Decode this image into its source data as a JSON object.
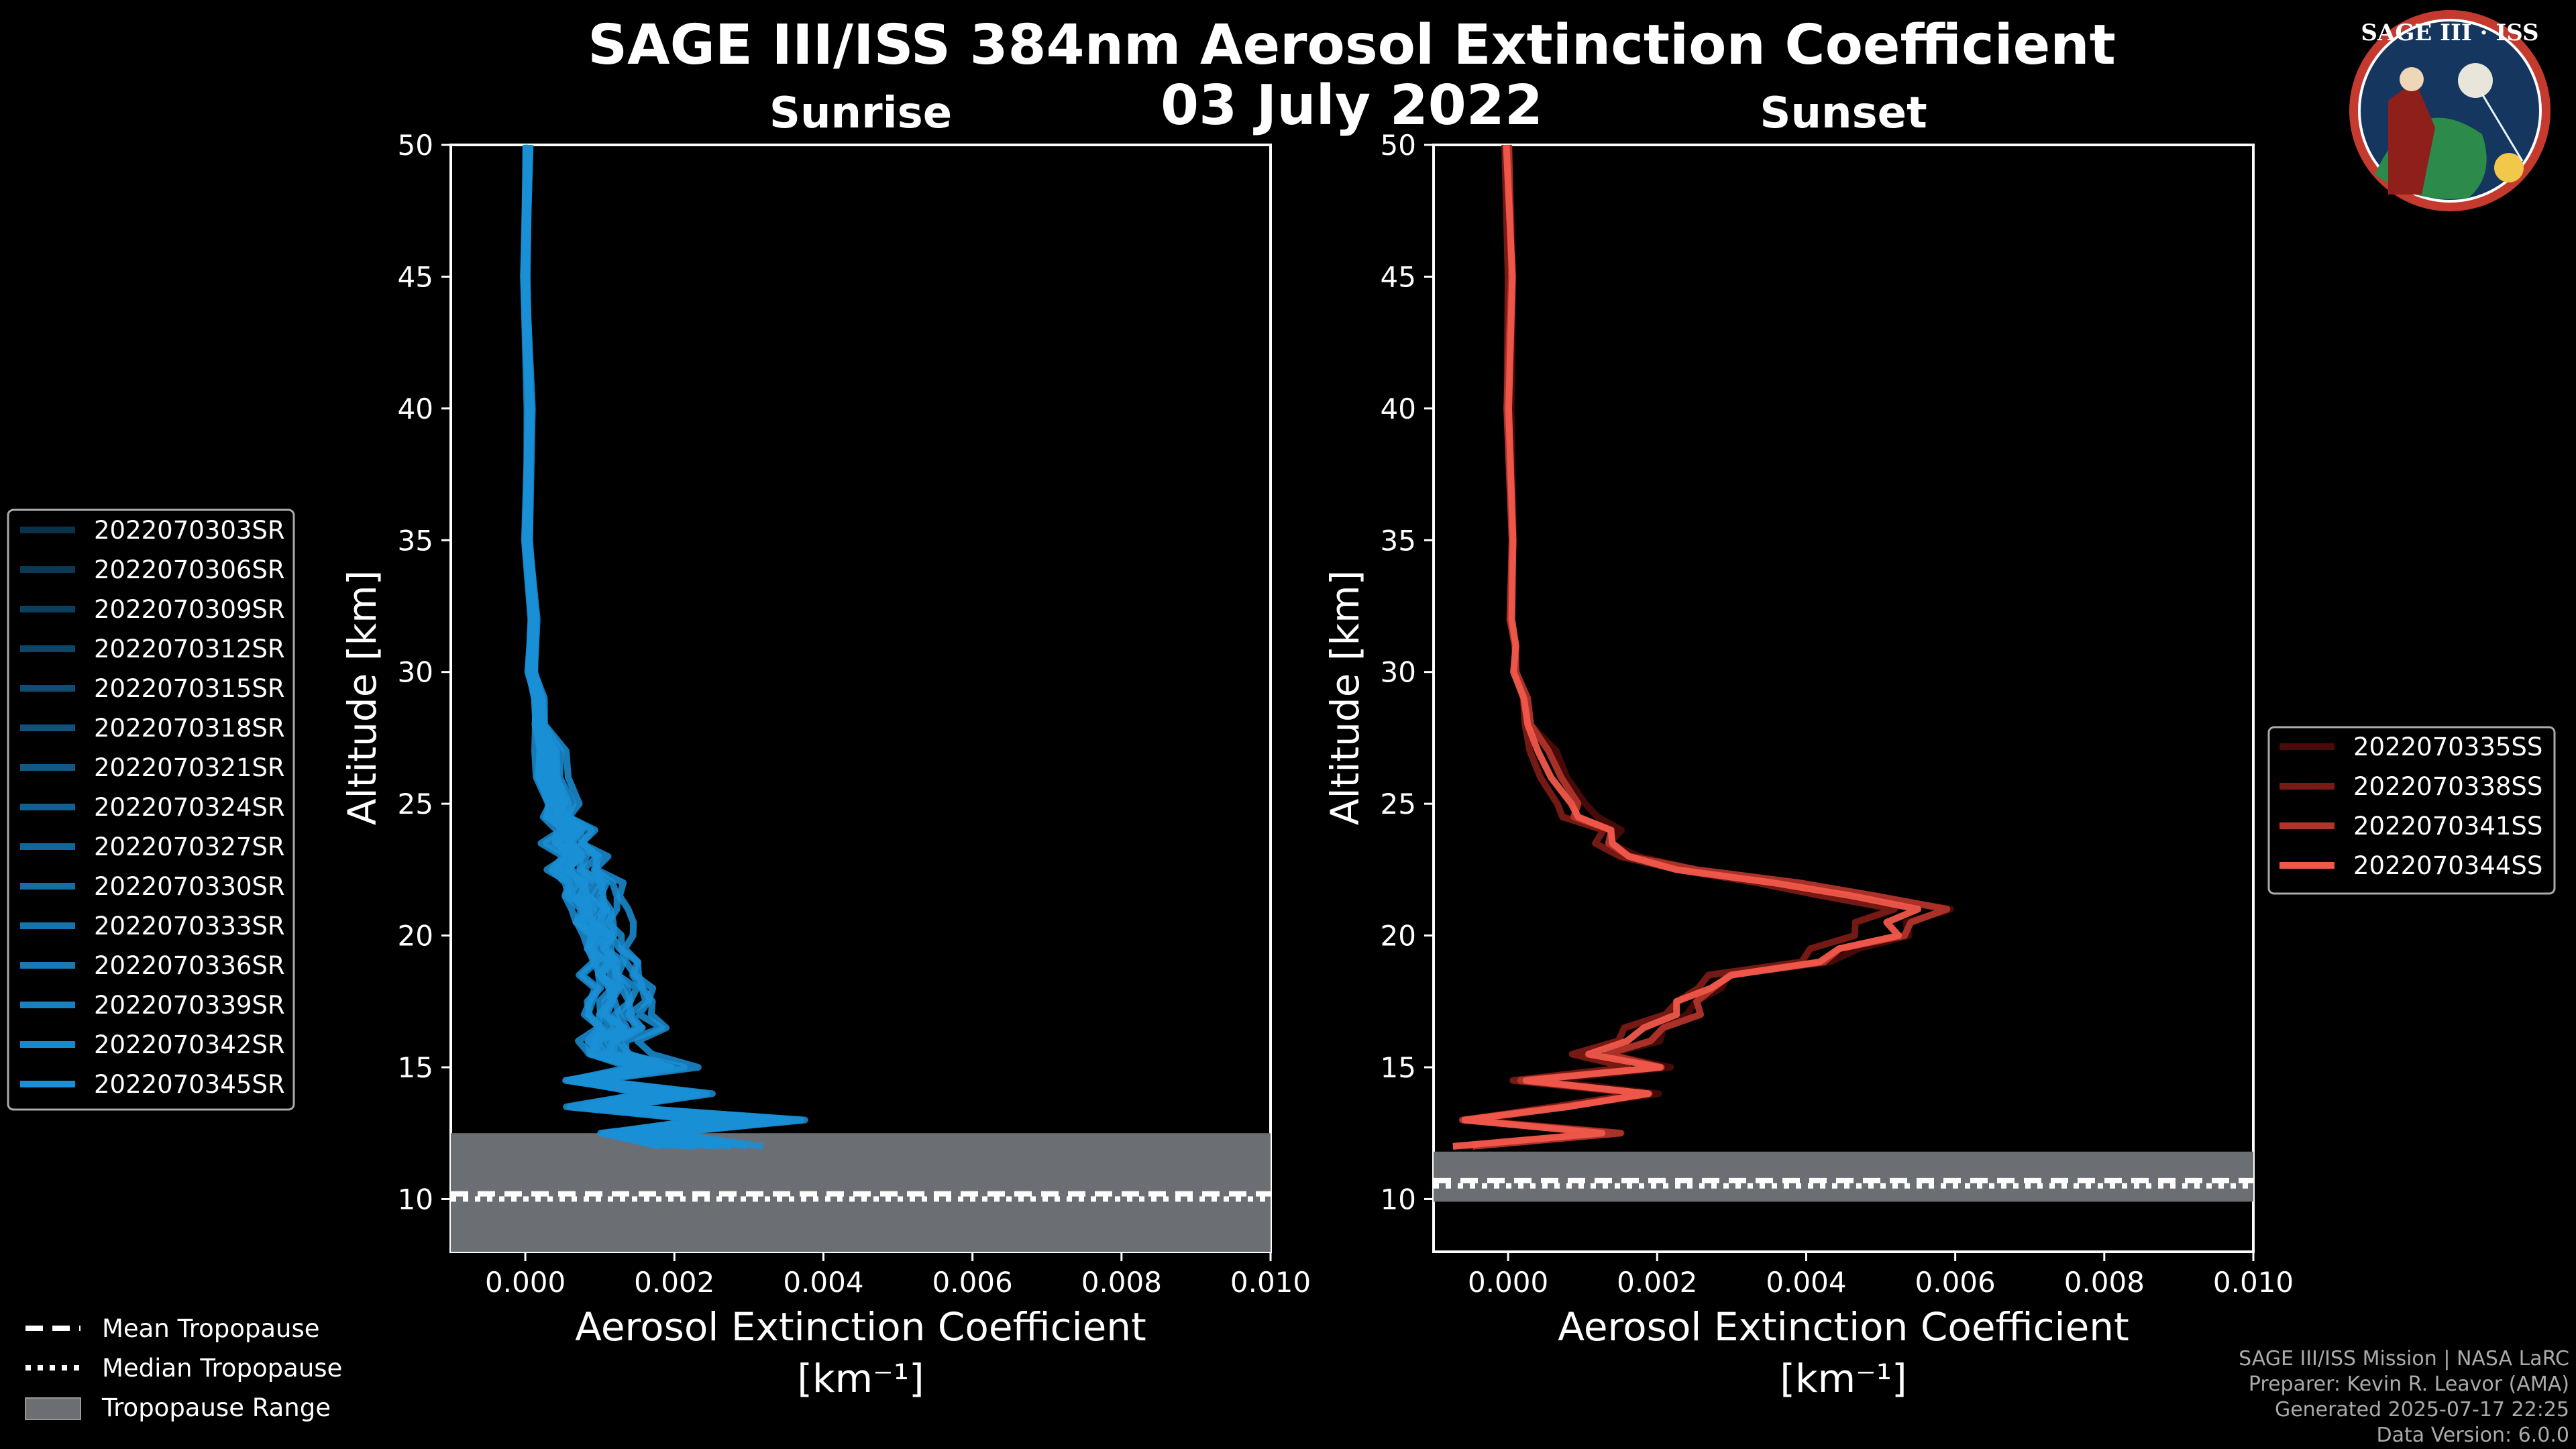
{
  "chart_data": {
    "title": "SAGE III/ISS 384nm Aerosol Extinction Coefficient",
    "subtitle": "03 July 2022",
    "logo_text": "SAGE III · ISS",
    "credits": [
      "SAGE III/ISS Mission | NASA LaRC",
      "Preparer: Kevin R. Leavor (AMA)",
      "Generated 2025-07-17 22:25",
      "Data Version: 6.0.0"
    ],
    "tropopause_legend": [
      "Mean Tropopause",
      "Median Tropopause",
      "Tropopause Range"
    ],
    "panels": [
      {
        "type": "line",
        "title": "Sunrise",
        "xlabel": "Aerosol Extinction Coefficient",
        "xunit": "[km⁻¹]",
        "ylabel": "Altitude [km]",
        "xlim": [
          -0.001,
          0.01
        ],
        "ylim": [
          8,
          50
        ],
        "xticks": [
          "0.000",
          "0.002",
          "0.004",
          "0.006",
          "0.008",
          "0.010"
        ],
        "xtick_values": [
          0,
          0.002,
          0.004,
          0.006,
          0.008,
          0.01
        ],
        "yticks": [
          10,
          15,
          20,
          25,
          30,
          35,
          40,
          45,
          50
        ],
        "tropopause": {
          "mean": 10.2,
          "median": 10.0,
          "range": [
            8,
            12.5
          ]
        },
        "color": "#1a8fd6",
        "series": [
          {
            "name": "2022070303SR",
            "shift": 5e-05,
            "amp": 1.0
          },
          {
            "name": "2022070306SR",
            "shift": -3e-05,
            "amp": 0.9
          },
          {
            "name": "2022070309SR",
            "shift": 8e-05,
            "amp": 1.1
          },
          {
            "name": "2022070312SR",
            "shift": 0.0,
            "amp": 0.95
          },
          {
            "name": "2022070315SR",
            "shift": 0.0001,
            "amp": 1.05
          },
          {
            "name": "2022070318SR",
            "shift": -6e-05,
            "amp": 0.85
          },
          {
            "name": "2022070321SR",
            "shift": 0.00012,
            "amp": 1.15
          },
          {
            "name": "2022070324SR",
            "shift": 2e-05,
            "amp": 1.0
          },
          {
            "name": "2022070327SR",
            "shift": -0.0001,
            "amp": 0.9
          },
          {
            "name": "2022070330SR",
            "shift": 0.00015,
            "amp": 1.2
          },
          {
            "name": "2022070333SR",
            "shift": 4e-05,
            "amp": 0.8
          },
          {
            "name": "2022070336SR",
            "shift": -2e-05,
            "amp": 1.1
          },
          {
            "name": "2022070339SR",
            "shift": 0.0002,
            "amp": 1.25
          },
          {
            "name": "2022070342SR",
            "shift": 7e-05,
            "amp": 0.95
          },
          {
            "name": "2022070345SR",
            "shift": -8e-05,
            "amp": 1.0
          }
        ],
        "base_profile": {
          "alt": [
            12.0,
            12.5,
            13.0,
            13.5,
            14.0,
            14.5,
            15.0,
            15.5,
            16.0,
            16.5,
            17.0,
            17.5,
            18.0,
            18.5,
            19.0,
            19.5,
            20.0,
            20.5,
            21.0,
            21.5,
            22.0,
            22.5,
            23.0,
            23.5,
            24.0,
            24.5,
            25.0,
            26.0,
            27.0,
            28.0,
            29.0,
            30.0,
            32.0,
            35.0,
            40.0,
            45.0,
            50.0
          ],
          "ext": [
            0.0022,
            0.0015,
            0.0028,
            0.001,
            0.0018,
            0.0008,
            0.0016,
            0.0012,
            0.0009,
            0.0014,
            0.001,
            0.0013,
            0.0011,
            0.0012,
            0.001,
            0.0011,
            0.0009,
            0.001,
            0.0008,
            0.0009,
            0.0007,
            0.0007,
            0.0006,
            0.0006,
            0.0005,
            0.0005,
            0.0004,
            0.0003,
            0.00025,
            0.0002,
            0.00015,
            0.0001,
            8e-05,
            5e-05,
            3e-05,
            2e-05,
            1e-05
          ]
        }
      },
      {
        "type": "line",
        "title": "Sunset",
        "xlabel": "Aerosol Extinction Coefficient",
        "xunit": "[km⁻¹]",
        "ylabel": "Altitude [km]",
        "xlim": [
          -0.001,
          0.01
        ],
        "ylim": [
          8,
          50
        ],
        "xticks": [
          "0.000",
          "0.002",
          "0.004",
          "0.006",
          "0.008",
          "0.010"
        ],
        "xtick_values": [
          0,
          0.002,
          0.004,
          0.006,
          0.008,
          0.01
        ],
        "yticks": [
          10,
          15,
          20,
          25,
          30,
          35,
          40,
          45,
          50
        ],
        "tropopause": {
          "mean": 10.7,
          "median": 10.5,
          "range": [
            9.9,
            11.8
          ]
        },
        "series": [
          {
            "name": "2022070335SS",
            "color": "#4a0b08",
            "shift": 0.0002,
            "amp": 1.0
          },
          {
            "name": "2022070338SS",
            "color": "#7a1a14",
            "shift": -0.0001,
            "amp": 0.95
          },
          {
            "name": "2022070341SS",
            "color": "#b0342a",
            "shift": 0.0001,
            "amp": 1.02
          },
          {
            "name": "2022070344SS",
            "color": "#f0584a",
            "shift": 0.0,
            "amp": 1.0
          }
        ],
        "base_profile": {
          "alt": [
            12.0,
            12.5,
            13.0,
            13.5,
            14.0,
            14.5,
            15.0,
            15.5,
            16.0,
            16.5,
            17.0,
            17.5,
            18.0,
            18.5,
            19.0,
            19.5,
            20.0,
            20.5,
            21.0,
            21.5,
            22.0,
            22.5,
            23.0,
            23.5,
            24.0,
            24.5,
            25.0,
            26.0,
            27.0,
            28.0,
            29.0,
            30.0,
            31.0,
            32.0,
            35.0,
            40.0,
            45.0,
            50.0
          ],
          "ext": [
            -0.0008,
            0.0015,
            -0.0007,
            0.0008,
            0.0017,
            0.0003,
            0.0018,
            0.0012,
            0.0016,
            0.002,
            0.0022,
            0.0025,
            0.0026,
            0.003,
            0.004,
            0.0045,
            0.005,
            0.0052,
            0.0055,
            0.0048,
            0.0035,
            0.0025,
            0.0015,
            0.0014,
            0.0012,
            0.001,
            0.0008,
            0.0006,
            0.0004,
            0.0003,
            0.0002,
            0.00012,
            8e-05,
            5e-05,
            3e-05,
            2e-05,
            1e-05,
            0.0
          ]
        }
      }
    ]
  }
}
